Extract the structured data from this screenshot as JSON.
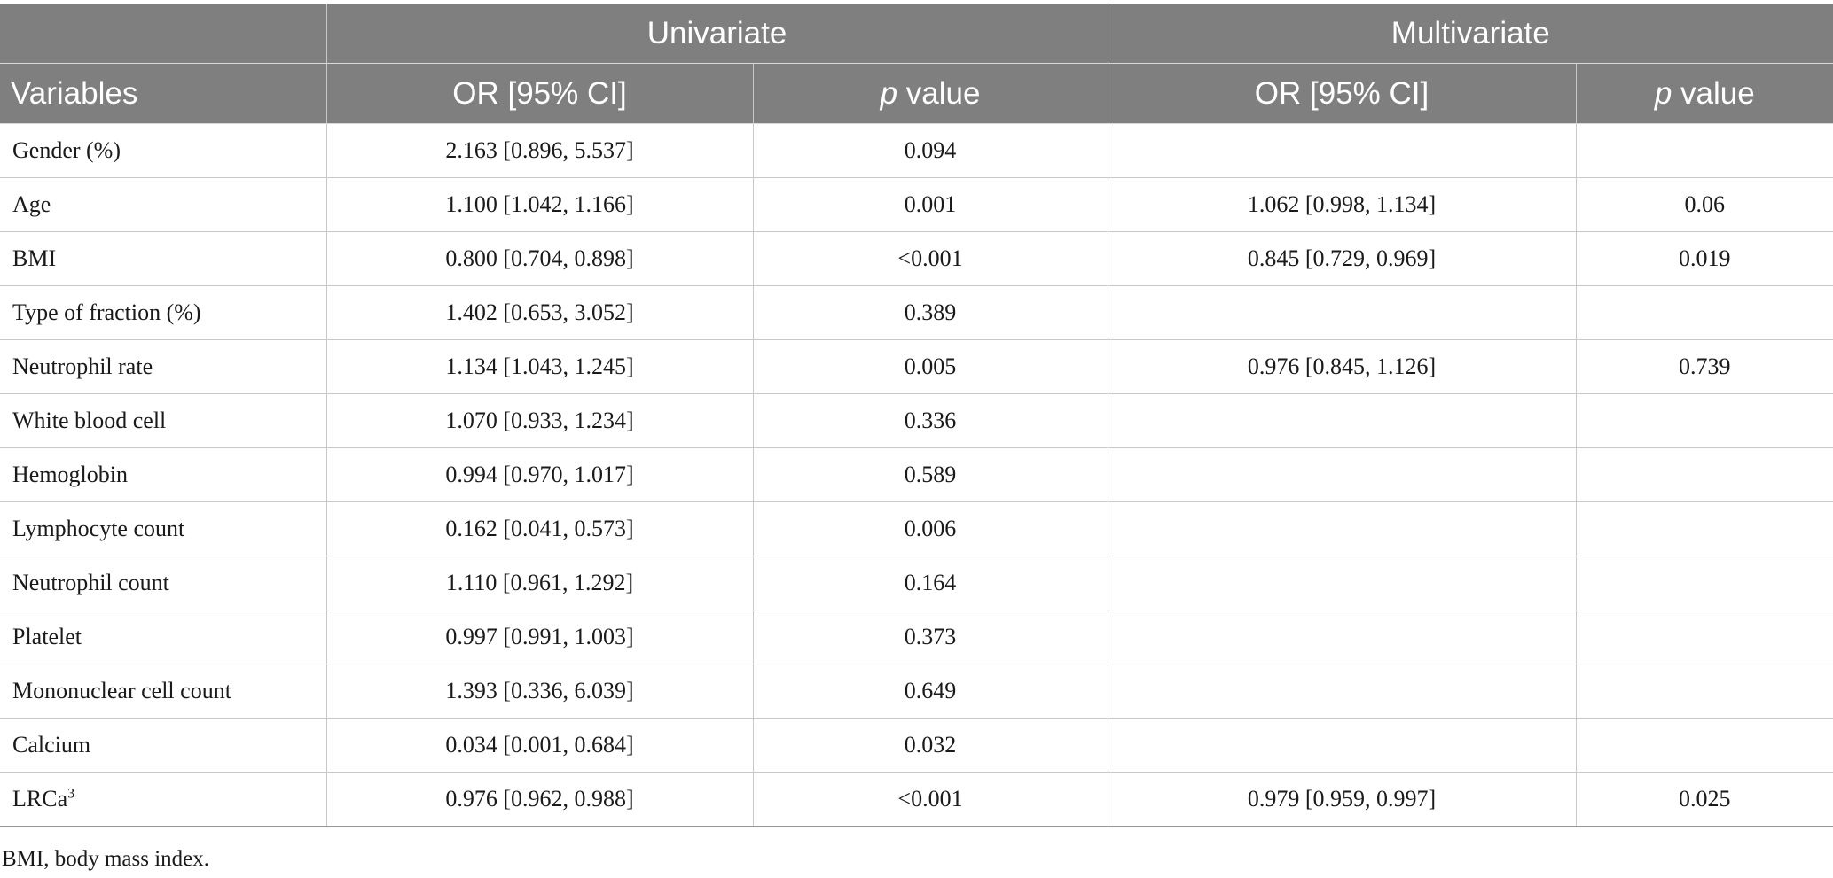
{
  "header": {
    "group_univariate": "Univariate",
    "group_multivariate": "Multivariate",
    "col_variables": "Variables",
    "col_or_uni": "OR [95% CI]",
    "col_p_uni_italic": "p",
    "col_p_uni_rest": " value",
    "col_or_multi": "OR [95% CI]",
    "col_p_multi_italic": "p",
    "col_p_multi_rest": " value"
  },
  "rows": [
    {
      "variable": "Gender (%)",
      "or_uni": "2.163 [0.896, 5.537]",
      "p_uni": "0.094",
      "or_multi": "",
      "p_multi": ""
    },
    {
      "variable": "Age",
      "or_uni": "1.100 [1.042, 1.166]",
      "p_uni": "0.001",
      "or_multi": "1.062 [0.998, 1.134]",
      "p_multi": "0.06"
    },
    {
      "variable": "BMI",
      "or_uni": "0.800 [0.704, 0.898]",
      "p_uni": "<0.001",
      "or_multi": "0.845 [0.729, 0.969]",
      "p_multi": "0.019"
    },
    {
      "variable": "Type of fraction (%)",
      "or_uni": "1.402 [0.653, 3.052]",
      "p_uni": "0.389",
      "or_multi": "",
      "p_multi": ""
    },
    {
      "variable": "Neutrophil rate",
      "or_uni": "1.134 [1.043, 1.245]",
      "p_uni": "0.005",
      "or_multi": "0.976 [0.845, 1.126]",
      "p_multi": "0.739"
    },
    {
      "variable": "White blood cell",
      "or_uni": "1.070 [0.933, 1.234]",
      "p_uni": "0.336",
      "or_multi": "",
      "p_multi": ""
    },
    {
      "variable": "Hemoglobin",
      "or_uni": "0.994 [0.970, 1.017]",
      "p_uni": "0.589",
      "or_multi": "",
      "p_multi": ""
    },
    {
      "variable": "Lymphocyte count",
      "or_uni": "0.162 [0.041, 0.573]",
      "p_uni": "0.006",
      "or_multi": "",
      "p_multi": ""
    },
    {
      "variable": "Neutrophil count",
      "or_uni": "1.110 [0.961, 1.292]",
      "p_uni": "0.164",
      "or_multi": "",
      "p_multi": ""
    },
    {
      "variable": "Platelet",
      "or_uni": "0.997 [0.991, 1.003]",
      "p_uni": "0.373",
      "or_multi": "",
      "p_multi": ""
    },
    {
      "variable": "Mononuclear cell count",
      "or_uni": "1.393 [0.336, 6.039]",
      "p_uni": "0.649",
      "or_multi": "",
      "p_multi": ""
    },
    {
      "variable": "Calcium",
      "or_uni": "0.034 [0.001, 0.684]",
      "p_uni": "0.032",
      "or_multi": "",
      "p_multi": ""
    },
    {
      "variable": "LRCa",
      "variable_sup": "3",
      "or_uni": "0.976 [0.962, 0.988]",
      "p_uni": "<0.001",
      "or_multi": "0.979 [0.959, 0.997]",
      "p_multi": "0.025"
    }
  ],
  "footnote": "BMI, body mass index."
}
